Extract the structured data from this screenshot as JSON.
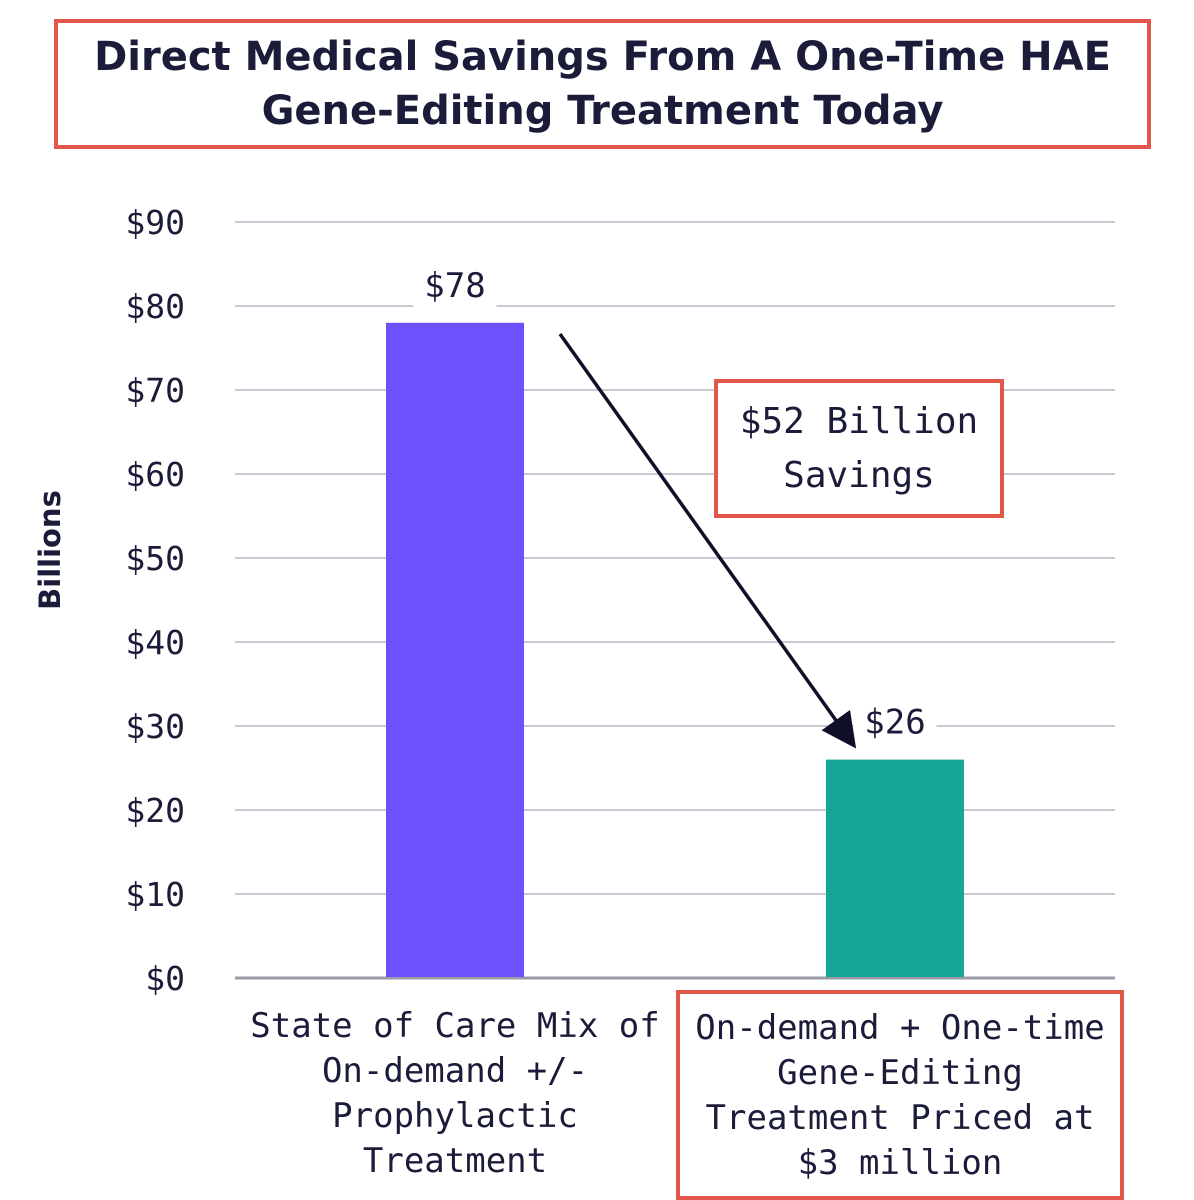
{
  "title": "Direct Medical Savings From A One-Time HAE Gene-Editing Treatment Today",
  "chart_data": {
    "type": "bar",
    "title": "Direct Medical Savings From A One-Time HAE Gene-Editing Treatment Today",
    "xlabel": "",
    "ylabel": "Billions",
    "ylim": [
      0,
      90
    ],
    "yticks": [
      0,
      10,
      20,
      30,
      40,
      50,
      60,
      70,
      80,
      90
    ],
    "ytick_labels": [
      "$0",
      "$10",
      "$20",
      "$30",
      "$40",
      "$50",
      "$60",
      "$70",
      "$80",
      "$90"
    ],
    "categories": [
      "State of Care Mix of On-demand +/- Prophylactic Treatment",
      "On-demand + One-time Gene-Editing Treatment Priced at $3 million"
    ],
    "values": [
      78,
      26
    ],
    "data_labels": [
      "$78",
      "$26"
    ],
    "bar_colors": [
      "#6e51fc",
      "#17a596"
    ],
    "grid": true,
    "annotation": "$52 Billion Savings"
  },
  "colors": {
    "accent_box": "#e1584a",
    "text": "#1b1b3a",
    "grid": "#c9c9d4"
  }
}
